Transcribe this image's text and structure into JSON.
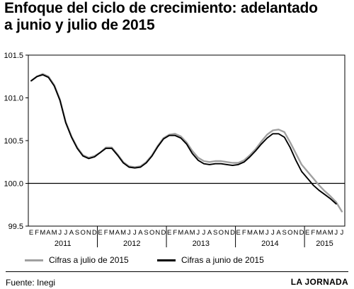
{
  "title_line1": "Enfoque del ciclo de crecimiento: adelantado",
  "title_line2": "a junio y julio de 2015",
  "source": "Fuente: Inegi",
  "brand": "LA JORNADA",
  "colors": {
    "series_july": "#a0a0a0",
    "series_june": "#000000",
    "baseline": "#000000"
  },
  "chart_data": {
    "type": "line",
    "title": "Enfoque del ciclo de crecimiento: adelantado a junio y julio de 2015",
    "xlabel": "",
    "ylabel": "",
    "ylim": [
      99.5,
      101.5
    ],
    "yticks": [
      99.5,
      100.0,
      100.5,
      101.0,
      101.5
    ],
    "ytick_labels": [
      "99.5",
      "100.0",
      "100.5",
      "101.0",
      "101.5"
    ],
    "reference_line": 100.0,
    "grid": false,
    "legend_placement": "bottom",
    "month_labels": [
      "E",
      "F",
      "M",
      "A",
      "M",
      "J",
      "J",
      "A",
      "S",
      "O",
      "N",
      "D"
    ],
    "months_2015": 7,
    "years": [
      "2011",
      "2012",
      "2013",
      "2014",
      "2015"
    ],
    "series": [
      {
        "name": "Cifras a julio de 2015",
        "values": [
          101.2,
          101.25,
          101.28,
          101.25,
          101.15,
          100.98,
          100.72,
          100.55,
          100.42,
          100.33,
          100.3,
          100.32,
          100.36,
          100.42,
          100.42,
          100.34,
          100.25,
          100.2,
          100.19,
          100.2,
          100.25,
          100.33,
          100.44,
          100.53,
          100.57,
          100.58,
          100.55,
          100.48,
          100.38,
          100.3,
          100.26,
          100.25,
          100.26,
          100.26,
          100.25,
          100.24,
          100.24,
          100.27,
          100.33,
          100.4,
          100.49,
          100.57,
          100.62,
          100.63,
          100.6,
          100.48,
          100.35,
          100.22,
          100.14,
          100.06,
          99.98,
          99.91,
          99.85,
          99.78,
          99.67
        ]
      },
      {
        "name": "Cifras a junio de 2015",
        "values": [
          101.2,
          101.25,
          101.27,
          101.24,
          101.14,
          100.97,
          100.71,
          100.54,
          100.41,
          100.32,
          100.29,
          100.31,
          100.36,
          100.41,
          100.41,
          100.33,
          100.24,
          100.19,
          100.18,
          100.19,
          100.24,
          100.32,
          100.43,
          100.52,
          100.56,
          100.56,
          100.53,
          100.46,
          100.35,
          100.27,
          100.23,
          100.22,
          100.23,
          100.23,
          100.22,
          100.21,
          100.22,
          100.25,
          100.31,
          100.38,
          100.46,
          100.53,
          100.58,
          100.58,
          100.54,
          100.42,
          100.27,
          100.14,
          100.06,
          99.98,
          99.92,
          99.87,
          99.82,
          99.76
        ]
      }
    ]
  }
}
